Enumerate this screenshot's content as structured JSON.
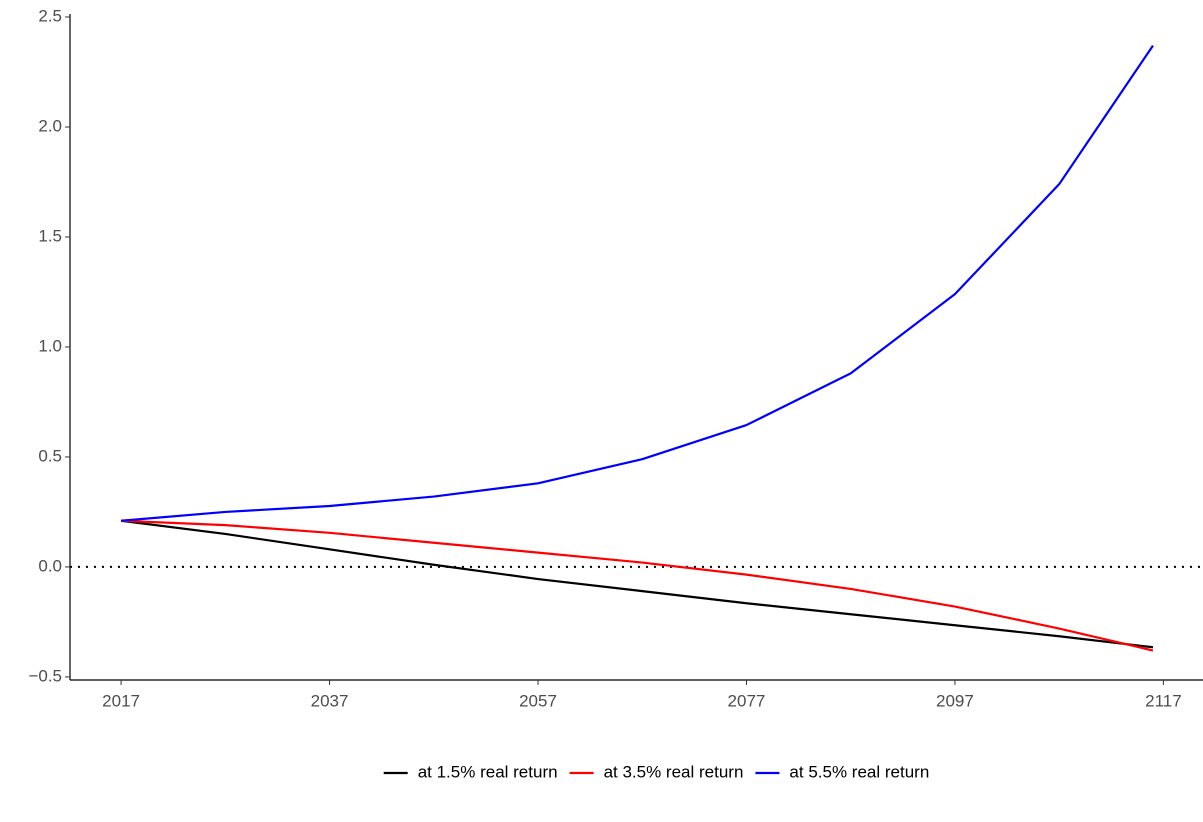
{
  "chart_data": {
    "type": "line",
    "x": [
      2017,
      2027,
      2037,
      2047,
      2057,
      2067,
      2077,
      2087,
      2097,
      2107,
      2116
    ],
    "series": [
      {
        "name": "at 1.5% real return",
        "color": "#000000",
        "values": [
          0.21,
          0.15,
          0.08,
          0.01,
          -0.055,
          -0.11,
          -0.165,
          -0.215,
          -0.265,
          -0.315,
          -0.365
        ]
      },
      {
        "name": "at 3.5% real return",
        "color": "#ff0000",
        "values": [
          0.21,
          0.19,
          0.155,
          0.11,
          0.065,
          0.02,
          -0.035,
          -0.1,
          -0.18,
          -0.28,
          -0.38
        ]
      },
      {
        "name": "at 5.5% real return",
        "color": "#0000ff",
        "values": [
          0.21,
          0.25,
          0.277,
          0.32,
          0.38,
          0.49,
          0.645,
          0.88,
          1.24,
          1.74,
          2.37
        ]
      }
    ],
    "xlim": [
      2012.1,
      2120.8
    ],
    "xticks": [
      2017,
      2037,
      2057,
      2077,
      2097,
      2117
    ],
    "ylim": [
      -0.514,
      2.5
    ],
    "yticks": [
      {
        "value": -0.5,
        "label": "−0.5"
      },
      {
        "value": 0,
        "label": "0.0"
      },
      0.5,
      {
        "value": 1,
        "label": "1.0"
      },
      1.5,
      {
        "value": 2,
        "label": "2.0"
      },
      2.5
    ],
    "hline": 0,
    "grid": false,
    "legend": "bottom"
  }
}
